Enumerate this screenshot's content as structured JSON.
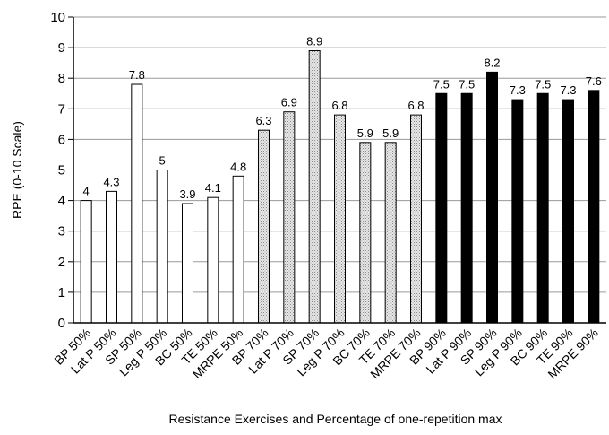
{
  "chart_data": {
    "type": "bar",
    "title": "",
    "xlabel": "Resistance Exercises and Percentage of one-repetition max",
    "ylabel": "RPE (0-10 Scale)",
    "ylim": [
      0,
      10
    ],
    "yticks": [
      0,
      1,
      2,
      3,
      4,
      5,
      6,
      7,
      8,
      9,
      10
    ],
    "grid": "horizontal",
    "categories": [
      "BP 50%",
      "Lat P 50%",
      "SP 50%",
      "Leg P 50%",
      "BC 50%",
      "TE 50%",
      "MRPE 50%",
      "BP 70%",
      "Lat P 70%",
      "SP 70%",
      "Leg P 70%",
      "BC 70%",
      "TE 70%",
      "MRPE 70%",
      "BP 90%",
      "Lat P 90%",
      "SP 90%",
      "Leg P 90%",
      "BC 90%",
      "TE 90%",
      "MRPE 90%"
    ],
    "values": [
      4,
      4.3,
      7.8,
      5,
      3.9,
      4.1,
      4.8,
      6.3,
      6.9,
      8.9,
      6.8,
      5.9,
      5.9,
      6.8,
      7.5,
      7.5,
      8.2,
      7.3,
      7.5,
      7.3,
      7.6
    ],
    "data_labels": [
      "4",
      "4.3",
      "7.8",
      "5",
      "3.9",
      "4.1",
      "4.8",
      "6.3",
      "6.9",
      "8.9",
      "6.8",
      "5.9",
      "5.9",
      "6.8",
      "7.5",
      "7.5",
      "8.2",
      "7.3",
      "7.5",
      "7.3",
      "7.6"
    ],
    "bar_groups": [
      {
        "intensity": "50%",
        "fill": "#ffffff"
      },
      {
        "intensity": "70%",
        "fill": "#d9d9d9"
      },
      {
        "intensity": "90%",
        "fill": "#000000"
      }
    ]
  }
}
